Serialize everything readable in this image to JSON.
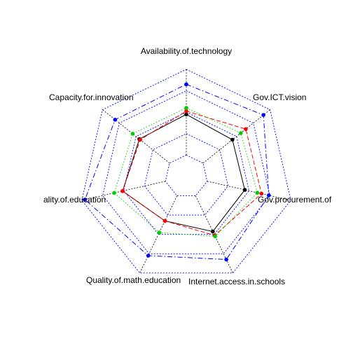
{
  "chart_data": {
    "type": "radar",
    "title": "",
    "axes": [
      "Availability.of.technology",
      "Gov.ICT.vision",
      "Gov.procurement.of",
      "Internet.access.in.schools",
      "Quality.of.math.education",
      "ality.of.education",
      "Capacity.for.innovation"
    ],
    "rlim": [
      0,
      1
    ],
    "grid_levels": [
      0.2,
      0.4,
      0.6,
      0.8,
      1.0
    ],
    "grid": true,
    "series": [
      {
        "values": [
          0.58,
          0.55,
          0.56,
          0.57,
          0.46,
          0.61,
          0.56
        ],
        "color": "#000000",
        "line_style": "solid"
      },
      {
        "values": [
          0.61,
          0.71,
          0.72,
          0.61,
          0.46,
          0.61,
          0.55
        ],
        "color": "#FF0000",
        "line_style": "dashed"
      },
      {
        "values": [
          0.64,
          0.65,
          0.68,
          0.62,
          0.58,
          0.69,
          0.64
        ],
        "color": "#00CD00",
        "line_style": "dotted"
      },
      {
        "values": [
          0.86,
          0.92,
          0.79,
          0.86,
          0.82,
          0.97,
          0.85
        ],
        "color": "#0000FF",
        "line_style": "dashdot"
      }
    ]
  }
}
